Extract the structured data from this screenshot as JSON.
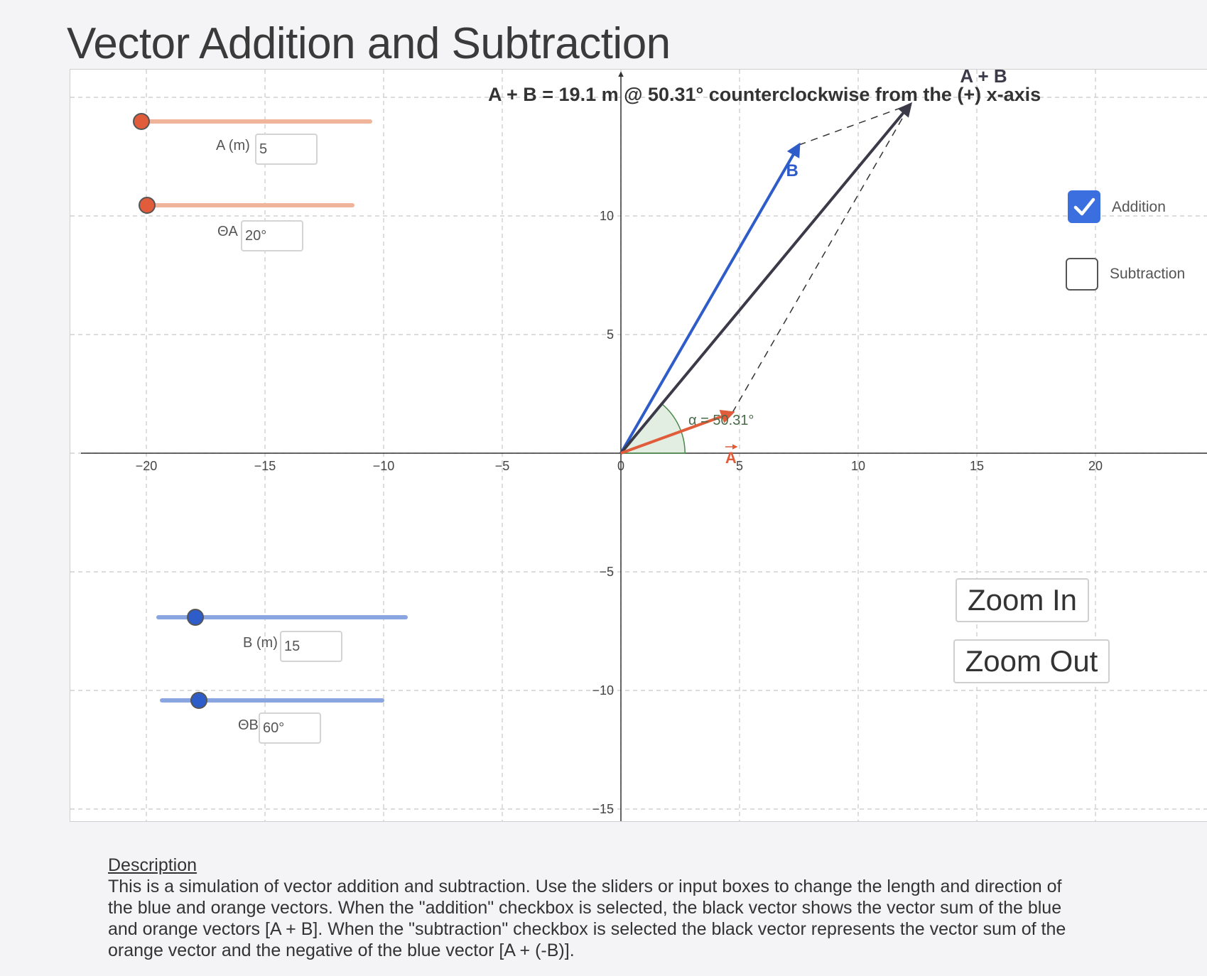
{
  "page": {
    "title": "Vector Addition and Subtraction"
  },
  "graph": {
    "x_ticks": [
      "−20",
      "−15",
      "−10",
      "−5",
      "0",
      "5",
      "10",
      "15",
      "20"
    ],
    "y_ticks": [
      "10",
      "5",
      "−5",
      "−10",
      "−15"
    ],
    "vector_a": {
      "label": "A",
      "magnitude": 5,
      "angle_deg": 20,
      "color": "#e05c3a"
    },
    "vector_b": {
      "label": "B",
      "magnitude": 15,
      "angle_deg": 60,
      "color": "#2e5cc9"
    },
    "resultant": {
      "label": "A + B",
      "color": "#3a3a48"
    },
    "resultant_readout": "A + B = 19.1 m @ 50.31° counterclockwise from the (+) x-axis",
    "angle_label": "α = 50.31°"
  },
  "controls": {
    "a_magnitude": {
      "label": "A (m)",
      "value": "5"
    },
    "a_angle": {
      "label": "ΘA",
      "value": "20°"
    },
    "b_magnitude": {
      "label": "B (m)",
      "value": "15"
    },
    "b_angle": {
      "label": "ΘB",
      "value": "60°"
    }
  },
  "checkboxes": {
    "addition": {
      "label": "Addition",
      "checked": true
    },
    "subtraction": {
      "label": "Subtraction",
      "checked": false
    }
  },
  "buttons": {
    "zoom_in": "Zoom In",
    "zoom_out": "Zoom Out"
  },
  "description": {
    "title": "Description",
    "body": "This is a simulation of vector addition and subtraction. Use the sliders or input boxes to change the length and direction of the blue and orange vectors. When the \"addition\" checkbox is selected, the black vector shows the vector sum of the blue and orange vectors [A + B]. When the \"subtraction\" checkbox is selected the black vector represents the vector sum of the orange vector and the negative of the blue vector [A + (-B)]."
  },
  "colors": {
    "orange": "#e05c3a",
    "orange_track": "#f0b49a",
    "blue": "#2e5cc9",
    "blue_track": "#8aa6e0",
    "check_blue": "#3b6fe0"
  }
}
